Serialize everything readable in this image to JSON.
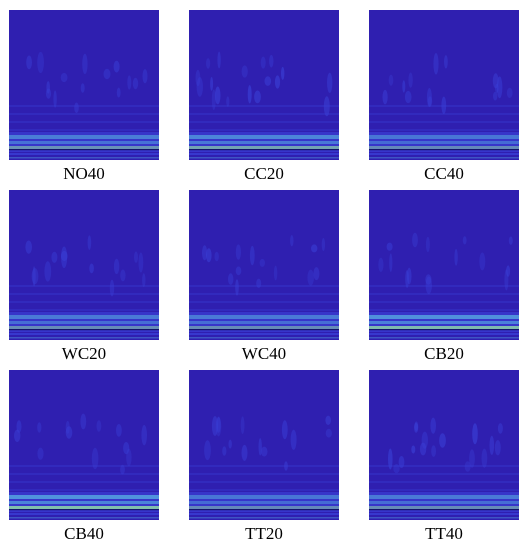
{
  "palette": {
    "background": "#2f1fb0",
    "feature": "#3a3fd6",
    "band_light": "#56a8e0",
    "band_green": "#8ed6a8",
    "line_dark": "#101060"
  },
  "panels": [
    {
      "label": "NO40",
      "band": 0.55,
      "features": 0.5
    },
    {
      "label": "CC20",
      "band": 0.7,
      "features": 0.8
    },
    {
      "label": "CC40",
      "band": 0.45,
      "features": 0.5
    },
    {
      "label": "WC20",
      "band": 0.5,
      "features": 0.5
    },
    {
      "label": "WC40",
      "band": 0.5,
      "features": 0.6
    },
    {
      "label": "CB20",
      "band": 0.9,
      "features": 0.5
    },
    {
      "label": "CB40",
      "band": 0.95,
      "features": 0.4
    },
    {
      "label": "TT20",
      "band": 0.45,
      "features": 0.5
    },
    {
      "label": "TT40",
      "band": 0.5,
      "features": 0.8
    }
  ]
}
